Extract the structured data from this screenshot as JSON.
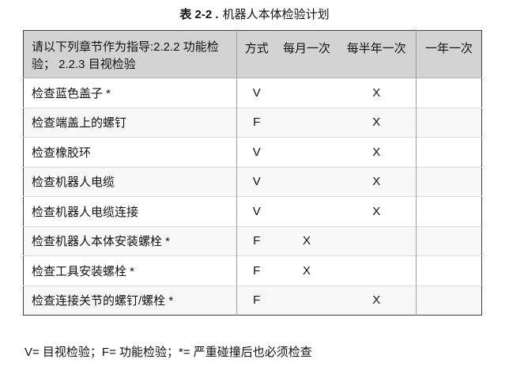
{
  "title": {
    "number": "表 2-2 .",
    "caption": "机器人本体检验计划"
  },
  "table": {
    "header": {
      "guide": "请以下列章节作为指导:2.2.2 功能检验； 2.2.3 目视检验",
      "columns": [
        "方式",
        "每月一次",
        "每半年一次",
        "一年一次"
      ]
    },
    "rows": [
      {
        "task": "检查蓝色盖子 *",
        "method": "V",
        "monthly": "",
        "half_yearly": "X",
        "yearly": ""
      },
      {
        "task": "检查端盖上的螺钉",
        "method": "F",
        "monthly": "",
        "half_yearly": "X",
        "yearly": ""
      },
      {
        "task": "检查橡胶环",
        "method": "V",
        "monthly": "",
        "half_yearly": "X",
        "yearly": ""
      },
      {
        "task": "检查机器人电缆",
        "method": "V",
        "monthly": "",
        "half_yearly": "X",
        "yearly": ""
      },
      {
        "task": "检查机器人电缆连接",
        "method": "V",
        "monthly": "",
        "half_yearly": "X",
        "yearly": ""
      },
      {
        "task": "检查机器人本体安装螺栓 *",
        "method": "F",
        "monthly": "X",
        "half_yearly": "",
        "yearly": ""
      },
      {
        "task": "检查工具安装螺栓 *",
        "method": "F",
        "monthly": "X",
        "half_yearly": "",
        "yearly": ""
      },
      {
        "task": "检查连接关节的螺钉/螺栓 *",
        "method": "F",
        "monthly": "",
        "half_yearly": "X",
        "yearly": ""
      }
    ]
  },
  "footer": {
    "legend": "V= 目视检验；F= 功能检验；*= 严重碰撞后也必须检查"
  },
  "colors": {
    "header_bg": "#d3d3d3",
    "row_alt_bg": "#f8f8f8",
    "outer_border": "#3d3d3d",
    "column_divider": "#9c9c9c",
    "row_divider": "#dcdcdc"
  }
}
